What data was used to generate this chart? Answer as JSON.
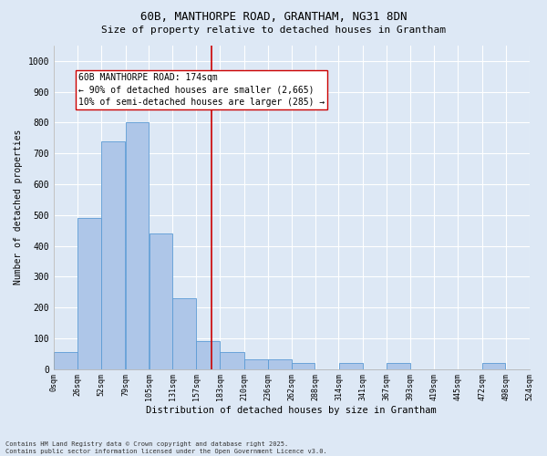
{
  "title_line1": "60B, MANTHORPE ROAD, GRANTHAM, NG31 8DN",
  "title_line2": "Size of property relative to detached houses in Grantham",
  "xlabel": "Distribution of detached houses by size in Grantham",
  "ylabel": "Number of detached properties",
  "bin_edges": [
    0,
    26,
    52,
    79,
    105,
    131,
    157,
    183,
    210,
    236,
    262,
    288,
    314,
    341,
    367,
    393,
    419,
    445,
    472,
    498,
    524
  ],
  "bar_heights": [
    55,
    490,
    740,
    800,
    440,
    230,
    90,
    55,
    30,
    30,
    20,
    0,
    20,
    0,
    20,
    0,
    0,
    0,
    20,
    0
  ],
  "bar_color": "#aec6e8",
  "bar_edge_color": "#5b9bd5",
  "bg_color": "#dde8f5",
  "grid_color": "#ffffff",
  "vline_x": 174,
  "vline_color": "#cc0000",
  "annotation_text": "60B MANTHORPE ROAD: 174sqm\n← 90% of detached houses are smaller (2,665)\n10% of semi-detached houses are larger (285) →",
  "annotation_box_color": "#ffffff",
  "annotation_box_edge": "#cc0000",
  "ylim": [
    0,
    1050
  ],
  "yticks": [
    0,
    100,
    200,
    300,
    400,
    500,
    600,
    700,
    800,
    900,
    1000
  ],
  "footer_line1": "Contains HM Land Registry data © Crown copyright and database right 2025.",
  "footer_line2": "Contains public sector information licensed under the Open Government Licence v3.0.",
  "title_fontsize": 9,
  "subtitle_fontsize": 8,
  "xlabel_fontsize": 7.5,
  "ylabel_fontsize": 7,
  "tick_fontsize": 6,
  "ytick_fontsize": 7,
  "footer_fontsize": 5,
  "annot_fontsize": 7
}
